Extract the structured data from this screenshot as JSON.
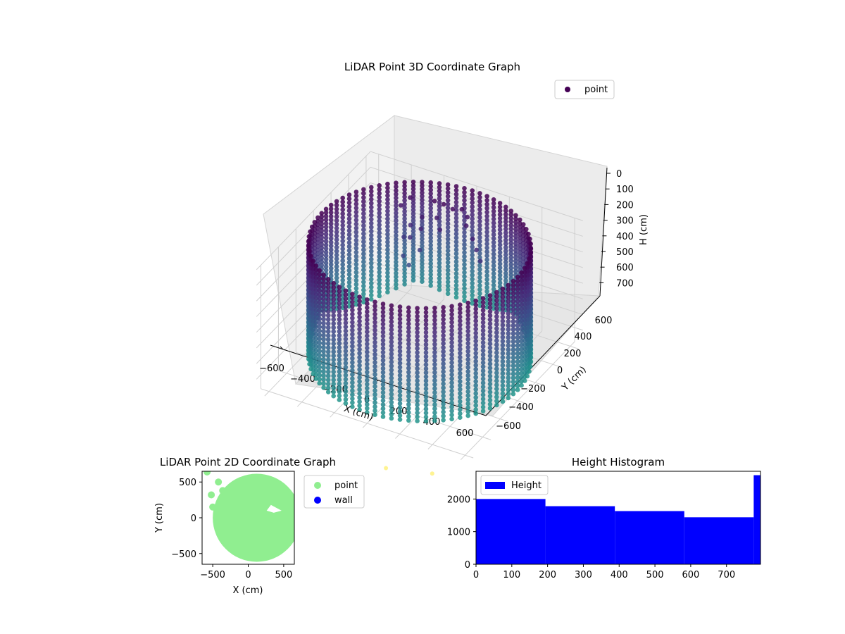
{
  "chart_data": [
    {
      "type": "scatter",
      "title": "LiDAR Point 3D Coordinate Graph",
      "xlabel": "X (cm)",
      "ylabel": "Y (cm)",
      "zlabel": "H (cm)",
      "xticks": [
        "−600",
        "−400",
        "−200",
        "0",
        "200",
        "400",
        "600"
      ],
      "yticks": [
        "−600",
        "−400",
        "−200",
        "0",
        "200",
        "400",
        "600"
      ],
      "zticks": [
        "0",
        "100",
        "200",
        "300",
        "400",
        "500",
        "600",
        "700"
      ],
      "xlim": [
        -650,
        650
      ],
      "ylim": [
        -650,
        650
      ],
      "zlim": [
        0,
        790
      ],
      "z_axis_inverted": true,
      "legend": {
        "entries": [
          {
            "name": "point",
            "color": "#440154"
          }
        ],
        "placement": "top-right"
      },
      "colormap": "viridis",
      "grid": true,
      "wall": {
        "radius_cm": 600,
        "height_range": [
          0,
          740
        ],
        "description_free": true
      },
      "cluster_points": [
        [
          -150,
          450,
          30
        ],
        [
          -100,
          460,
          40
        ],
        [
          -50,
          470,
          60
        ],
        [
          0,
          480,
          50
        ],
        [
          40,
          470,
          80
        ],
        [
          -200,
          400,
          120
        ],
        [
          -180,
          350,
          160
        ],
        [
          -220,
          300,
          200
        ],
        [
          -160,
          300,
          260
        ],
        [
          -120,
          420,
          110
        ],
        [
          -80,
          380,
          150
        ],
        [
          -260,
          380,
          180
        ],
        [
          -240,
          260,
          300
        ],
        [
          60,
          420,
          100
        ],
        [
          120,
          380,
          140
        ],
        [
          160,
          350,
          180
        ],
        [
          200,
          320,
          220
        ],
        [
          -300,
          450,
          60
        ],
        [
          -330,
          400,
          90
        ],
        [
          -280,
          340,
          240
        ],
        [
          -200,
          250,
          340
        ]
      ],
      "outlier_points": [
        [
          180,
          -720,
          0
        ],
        [
          420,
          -640,
          0
        ]
      ]
    },
    {
      "type": "scatter",
      "title": "LiDAR Point 2D Coordinate Graph",
      "xlabel": "X (cm)",
      "ylabel": "Y (cm)",
      "xticks": [
        "−500",
        "0",
        "500"
      ],
      "yticks": [
        "−500",
        "0",
        "500"
      ],
      "xlim": [
        -650,
        650
      ],
      "ylim": [
        -650,
        650
      ],
      "series": [
        {
          "name": "point",
          "color": "#90ee90"
        },
        {
          "name": "wall",
          "color": "#0000ff"
        }
      ],
      "legend_placement": "outside-right",
      "disk": {
        "center": [
          120,
          0
        ],
        "radius": 620
      },
      "extra_points": [
        [
          -580,
          640
        ],
        [
          -420,
          500
        ],
        [
          -520,
          320
        ],
        [
          -500,
          150
        ],
        [
          -360,
          380
        ]
      ]
    },
    {
      "type": "bar",
      "title": "Height Histogram",
      "series": [
        {
          "name": "Height",
          "color": "#0000ff"
        }
      ],
      "xticks": [
        "0",
        "100",
        "200",
        "300",
        "400",
        "500",
        "600",
        "700"
      ],
      "yticks": [
        "0",
        "1000",
        "2000"
      ],
      "xlim": [
        0,
        795
      ],
      "ylim": [
        0,
        2850
      ],
      "bins": [
        {
          "x0": 0,
          "x1": 194,
          "value": 2000
        },
        {
          "x0": 194,
          "x1": 388,
          "value": 1780
        },
        {
          "x0": 388,
          "x1": 582,
          "value": 1630
        },
        {
          "x0": 582,
          "x1": 776,
          "value": 1440
        },
        {
          "x0": 776,
          "x1": 795,
          "value": 2730
        }
      ],
      "legend_placement": "top-left"
    }
  ]
}
